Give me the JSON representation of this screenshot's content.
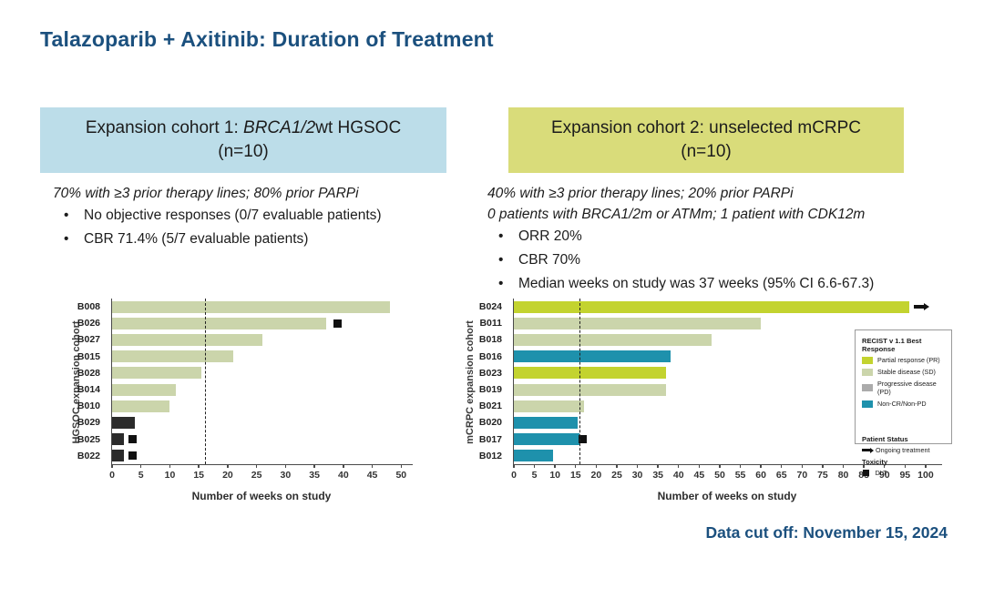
{
  "title": "Talazoparib + Axitinib: Duration of Treatment",
  "footer": {
    "data_cutoff": "Data cut off: November 15, 2024"
  },
  "colors": {
    "accent_blue": "#1B507E",
    "header_blue_bg": "#BCDDE9",
    "header_green_bg": "#D9DC7A",
    "PR": "#C3D32F",
    "SD": "#CBD5AB",
    "PD": "#ABABAB",
    "PD_DARK": "#2B2B2B",
    "NCNP": "#1E91AC",
    "marker_black": "#111111"
  },
  "cohort1": {
    "header": {
      "prefix": "Expansion cohort 1: ",
      "em": "BRCA1/2",
      "suffix": "wt HGSOC",
      "line2": "(n=10)"
    },
    "intro": [
      "70% with ≥3 prior therapy lines; 80% prior PARPi"
    ],
    "bullets": [
      "No objective responses (0/7 evaluable patients)",
      "CBR 71.4% (5/7 evaluable patients)"
    ]
  },
  "cohort2": {
    "header": {
      "prefix": "Expansion cohort 2: unselected mCRPC",
      "em": "",
      "suffix": "",
      "line2": "(n=10)"
    },
    "intro": [
      "40% with ≥3 prior therapy lines; 20% prior PARPi",
      "0 patients with BRCA1/2m or ATMm; 1 patient with CDK12m"
    ],
    "bullets": [
      "ORR 20%",
      "CBR 70%",
      "Median weeks on study was 37 weeks (95% CI 6.6-67.3)"
    ]
  },
  "chart_data": [
    {
      "type": "bar",
      "orientation": "horizontal",
      "title": "",
      "ylabel": "HGSOC expansion cohort",
      "xlabel": "Number of weeks on study",
      "xticks": [
        0,
        5,
        10,
        15,
        20,
        25,
        30,
        35,
        40,
        45,
        50
      ],
      "xlim": [
        0,
        52
      ],
      "reference_line_x": 16,
      "grid": false,
      "bars": [
        {
          "id": "B008",
          "weeks": 48,
          "color": "SD"
        },
        {
          "id": "B026",
          "weeks": 37,
          "color": "SD",
          "dlt_x": 39
        },
        {
          "id": "B027",
          "weeks": 26,
          "color": "SD"
        },
        {
          "id": "B015",
          "weeks": 21,
          "color": "SD"
        },
        {
          "id": "B028",
          "weeks": 15.5,
          "color": "SD"
        },
        {
          "id": "B014",
          "weeks": 11,
          "color": "SD"
        },
        {
          "id": "B010",
          "weeks": 10,
          "color": "SD"
        },
        {
          "id": "B029",
          "weeks": 4,
          "color": "PD_DARK"
        },
        {
          "id": "B025",
          "weeks": 2,
          "color": "PD_DARK",
          "dlt_x": 3.5
        },
        {
          "id": "B022",
          "weeks": 2,
          "color": "PD_DARK",
          "dlt_x": 3.5
        }
      ]
    },
    {
      "type": "bar",
      "orientation": "horizontal",
      "title": "",
      "ylabel": "mCRPC expansion cohort",
      "xlabel": "Number of weeks on study",
      "xticks": [
        0,
        5,
        10,
        15,
        20,
        25,
        30,
        35,
        40,
        45,
        50,
        55,
        60,
        65,
        70,
        75,
        80,
        85,
        90,
        95,
        100
      ],
      "xlim": [
        0,
        104
      ],
      "reference_line_x": 16,
      "grid": false,
      "bars": [
        {
          "id": "B024",
          "weeks": 96,
          "color": "PR",
          "ongoing": true
        },
        {
          "id": "B011",
          "weeks": 60,
          "color": "SD"
        },
        {
          "id": "B018",
          "weeks": 48,
          "color": "SD"
        },
        {
          "id": "B016",
          "weeks": 38,
          "color": "NCNP"
        },
        {
          "id": "B023",
          "weeks": 37,
          "color": "PR"
        },
        {
          "id": "B019",
          "weeks": 37,
          "color": "SD"
        },
        {
          "id": "B021",
          "weeks": 17,
          "color": "SD"
        },
        {
          "id": "B020",
          "weeks": 15.5,
          "color": "NCNP"
        },
        {
          "id": "B017",
          "weeks": 16,
          "color": "NCNP",
          "dlt_x": 16.6
        },
        {
          "id": "B012",
          "weeks": 9.5,
          "color": "NCNP"
        }
      ],
      "legend": {
        "response_title": "RECIST v 1.1 Best Response",
        "items": [
          {
            "key": "PR",
            "label": "Partial response (PR)"
          },
          {
            "key": "SD",
            "label": "Stable disease (SD)"
          },
          {
            "key": "PD",
            "label": "Progressive disease (PD)"
          },
          {
            "key": "NCNP",
            "label": "Non-CR/Non-PD"
          }
        ],
        "patient_status_title": "Patient Status",
        "ongoing_label": "Ongoing treatment",
        "toxicity_title": "Toxicity",
        "dlt_label": "DLT"
      }
    }
  ]
}
